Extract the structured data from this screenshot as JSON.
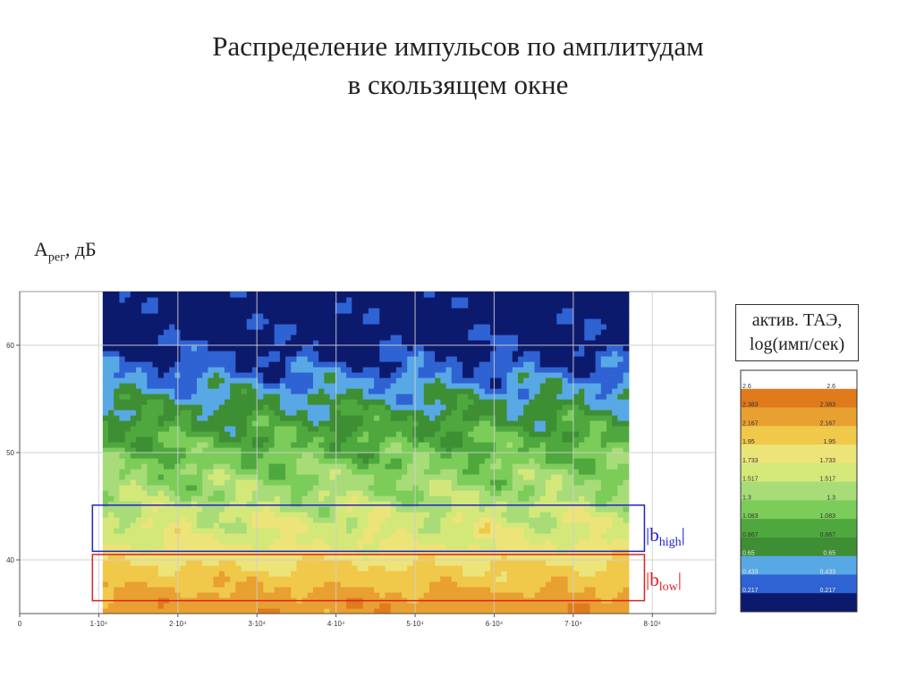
{
  "header": {
    "title_line1": "Распределение импульсов по амплитудам",
    "title_line2": "в скользящем окне"
  },
  "chart_data": {
    "type": "heatmap",
    "ylabel_main": "A",
    "ylabel_sub": "рег",
    "ylabel_unit": ", дБ",
    "yticks": [
      "60",
      "50",
      "40"
    ],
    "ytick_values": [
      60,
      50,
      40
    ],
    "ylim": [
      35,
      65
    ],
    "xticks": [
      "0",
      "1·10⁴",
      "2·10⁴",
      "3·10⁴",
      "4·10⁴",
      "5·10⁴",
      "6·10⁴",
      "7·10⁴",
      "8·10⁴"
    ],
    "xtick_values": [
      0,
      10000,
      20000,
      30000,
      40000,
      50000,
      60000,
      70000,
      80000
    ],
    "xlim": [
      0,
      88000
    ],
    "data_x_range": [
      10500,
      77000
    ],
    "amplitude_profile": {
      "amplitude_db": [
        36,
        38,
        40,
        42,
        44,
        46,
        48,
        50,
        52,
        54,
        56,
        58,
        60,
        62,
        64
      ],
      "log_rate": [
        2.3,
        2.1,
        1.9,
        1.7,
        1.62,
        1.42,
        1.3,
        1.1,
        0.95,
        0.75,
        0.55,
        0.3,
        0.1,
        0.05,
        0.0
      ]
    },
    "grid": true,
    "colorbar": {
      "title_line1": "актив. ТАЭ,",
      "title_line2": "log(имп/сек)",
      "levels": [
        "2.6",
        "2.383",
        "2.167",
        "1.95",
        "1.733",
        "1.517",
        "1.3",
        "1.083",
        "0.867",
        "0.65",
        "0.433",
        "0.217"
      ],
      "colors": [
        "#ffffff",
        "#e07a1c",
        "#e8a030",
        "#f0c84a",
        "#ece478",
        "#d4e87a",
        "#a8dc78",
        "#7ccc5a",
        "#4fa83e",
        "#3e8e34",
        "#58a8e6",
        "#2f62d2",
        "#0c1a6e"
      ]
    },
    "bands": [
      {
        "label": "b",
        "sub": "high",
        "range_db": [
          40.8,
          45.1
        ],
        "color": "#2222cc"
      },
      {
        "label": "b",
        "sub": "low",
        "range_db": [
          36.2,
          40.5
        ],
        "color": "#dd2222"
      }
    ]
  }
}
